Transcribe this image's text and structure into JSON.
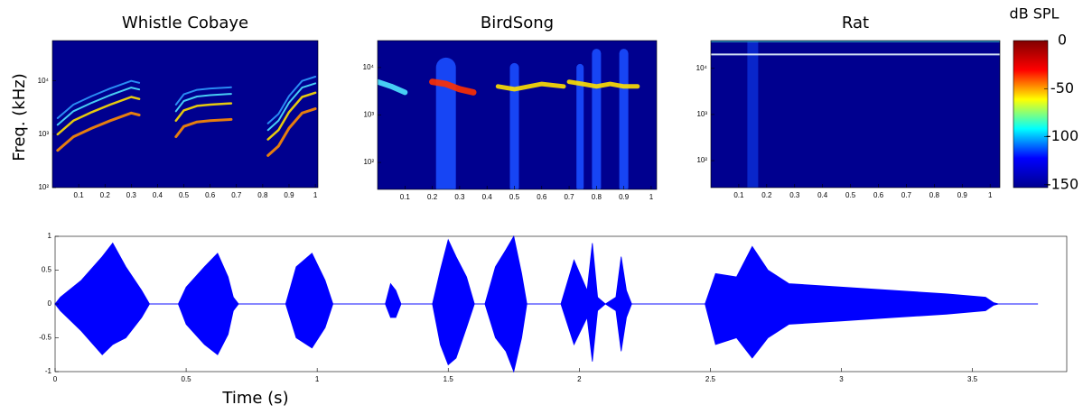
{
  "chart_data": [
    {
      "type": "spectrogram",
      "title": "Whistle Cobaye",
      "ylabel": "Freq. (kHz)",
      "background": "#00008f",
      "xlim": [
        0,
        1.01
      ],
      "xticks": [
        0.1,
        0.2,
        0.3,
        0.4,
        0.5,
        0.6,
        0.7,
        0.8,
        0.9,
        1
      ],
      "ylim": [
        100,
        57000
      ],
      "log_y": true,
      "yticks": [
        {
          "value": 100,
          "label": "10²"
        },
        {
          "value": 1000,
          "label": "10³"
        },
        {
          "value": 10000,
          "label": "10⁴"
        }
      ],
      "series": [
        {
          "color": "#ff8c00",
          "width": 3,
          "x": [
            0.02,
            0.08,
            0.15,
            0.22,
            0.3,
            0.33
          ],
          "values": [
            500,
            900,
            1300,
            1800,
            2500,
            2300
          ]
        },
        {
          "color": "#ffe000",
          "width": 2.5,
          "x": [
            0.02,
            0.08,
            0.15,
            0.22,
            0.3,
            0.33
          ],
          "values": [
            1000,
            1800,
            2600,
            3600,
            5000,
            4600
          ]
        },
        {
          "color": "#4fe3ff",
          "width": 2,
          "x": [
            0.02,
            0.08,
            0.15,
            0.22,
            0.3,
            0.33
          ],
          "values": [
            1500,
            2700,
            3900,
            5400,
            7500,
            6900
          ]
        },
        {
          "color": "#2f9bff",
          "width": 2,
          "x": [
            0.02,
            0.08,
            0.15,
            0.22,
            0.3,
            0.33
          ],
          "values": [
            2000,
            3600,
            5200,
            7200,
            10000,
            9200
          ]
        },
        {
          "color": "#ff8c00",
          "width": 3,
          "x": [
            0.47,
            0.5,
            0.55,
            0.6,
            0.68
          ],
          "values": [
            900,
            1400,
            1700,
            1800,
            1900
          ]
        },
        {
          "color": "#ffe000",
          "width": 2.5,
          "x": [
            0.47,
            0.5,
            0.55,
            0.6,
            0.68
          ],
          "values": [
            1800,
            2800,
            3400,
            3600,
            3800
          ]
        },
        {
          "color": "#4fe3ff",
          "width": 2,
          "x": [
            0.47,
            0.5,
            0.55,
            0.6,
            0.68
          ],
          "values": [
            2700,
            4200,
            5100,
            5400,
            5700
          ]
        },
        {
          "color": "#2f9bff",
          "width": 2,
          "x": [
            0.47,
            0.5,
            0.55,
            0.6,
            0.68
          ],
          "values": [
            3600,
            5600,
            6800,
            7200,
            7600
          ]
        },
        {
          "color": "#ff8c00",
          "width": 3,
          "x": [
            0.82,
            0.86,
            0.9,
            0.95,
            1.0
          ],
          "values": [
            400,
            600,
            1300,
            2500,
            3000
          ]
        },
        {
          "color": "#ffe000",
          "width": 2.5,
          "x": [
            0.82,
            0.86,
            0.9,
            0.95,
            1.0
          ],
          "values": [
            800,
            1200,
            2600,
            5000,
            6000
          ]
        },
        {
          "color": "#4fe3ff",
          "width": 2,
          "x": [
            0.82,
            0.86,
            0.9,
            0.95,
            1.0
          ],
          "values": [
            1200,
            1800,
            3900,
            7500,
            9000
          ]
        },
        {
          "color": "#2f9bff",
          "width": 2,
          "x": [
            0.82,
            0.86,
            0.9,
            0.95,
            1.0
          ],
          "values": [
            1600,
            2400,
            5200,
            10000,
            12000
          ]
        }
      ]
    },
    {
      "type": "spectrogram",
      "title": "BirdSong",
      "background": "#00008f",
      "xlim": [
        0,
        1.02
      ],
      "xticks": [
        0.1,
        0.2,
        0.3,
        0.4,
        0.5,
        0.6,
        0.7,
        0.8,
        0.9,
        1
      ],
      "ylim": [
        27,
        37000
      ],
      "log_y": true,
      "yticks": [
        {
          "value": 100,
          "label": "10²"
        },
        {
          "value": 1000,
          "label": "10³"
        },
        {
          "value": 10000,
          "label": "10⁴"
        }
      ],
      "series": [
        {
          "color": "#1a4dff",
          "width": 22,
          "x": [
            0.25,
            0.25
          ],
          "values": [
            30,
            10000
          ]
        },
        {
          "color": "#1a4dff",
          "width": 10,
          "x": [
            0.5,
            0.5
          ],
          "values": [
            30,
            10000
          ]
        },
        {
          "color": "#1a4dff",
          "width": 8,
          "x": [
            0.74,
            0.74
          ],
          "values": [
            30,
            10000
          ]
        },
        {
          "color": "#1a4dff",
          "width": 10,
          "x": [
            0.8,
            0.8
          ],
          "values": [
            30,
            20000
          ]
        },
        {
          "color": "#1a4dff",
          "width": 10,
          "x": [
            0.9,
            0.9
          ],
          "values": [
            30,
            20000
          ]
        },
        {
          "color": "#4fe3ff",
          "width": 6,
          "x": [
            0.0,
            0.05,
            0.1
          ],
          "values": [
            5000,
            4000,
            3000
          ]
        },
        {
          "color": "#ff3000",
          "width": 7,
          "x": [
            0.2,
            0.25,
            0.3,
            0.35
          ],
          "values": [
            5000,
            4500,
            3500,
            3000
          ]
        },
        {
          "color": "#ffe000",
          "width": 5,
          "x": [
            0.44,
            0.5,
            0.6,
            0.68
          ],
          "values": [
            4000,
            3500,
            4500,
            4000
          ]
        },
        {
          "color": "#ffe000",
          "width": 5,
          "x": [
            0.7,
            0.75,
            0.8,
            0.85,
            0.9,
            0.95
          ],
          "values": [
            5000,
            4500,
            4000,
            4500,
            4000,
            4000
          ]
        }
      ]
    },
    {
      "type": "spectrogram",
      "title": "Rat",
      "background": "#00008f",
      "xlim": [
        0,
        1.035
      ],
      "xticks": [
        0.1,
        0.2,
        0.3,
        0.4,
        0.5,
        0.6,
        0.7,
        0.8,
        0.9,
        1
      ],
      "ylim": [
        26,
        40000
      ],
      "log_y": true,
      "yticks": [
        {
          "value": 100,
          "label": "10²"
        },
        {
          "value": 1000,
          "label": "10³"
        },
        {
          "value": 10000,
          "label": "10⁴"
        }
      ],
      "series": [
        {
          "color": "#0a2ad0",
          "width": 12,
          "x": [
            0.15,
            0.15
          ],
          "values": [
            26,
            40000
          ]
        },
        {
          "color": "#e8f8ff",
          "width": 2,
          "x": [
            0,
            1.035
          ],
          "values": [
            20000,
            20000
          ]
        },
        {
          "color": "#2aa0c0",
          "width": 1.5,
          "x": [
            0,
            1.035
          ],
          "values": [
            38000,
            38000
          ]
        }
      ]
    },
    {
      "type": "colorbar",
      "title": "dB SPL",
      "ylim": [
        -153,
        0
      ],
      "yticks": [
        0,
        -50,
        -100,
        -150
      ],
      "colors": [
        "#00008f",
        "#0000ff",
        "#00ffff",
        "#ffff00",
        "#ff0000",
        "#800000"
      ]
    },
    {
      "type": "waveform",
      "xlabel": "Time (s)",
      "color": "#0000ff",
      "xlim": [
        0,
        3.86
      ],
      "xticks": [
        0,
        0.5,
        1,
        1.5,
        2,
        2.5,
        3,
        3.5
      ],
      "ylim": [
        -1,
        1
      ],
      "yticks": [
        -1,
        -0.5,
        0,
        0.5,
        1
      ],
      "x": [
        0,
        0.02,
        0.1,
        0.18,
        0.22,
        0.27,
        0.33,
        0.36,
        0.47,
        0.5,
        0.57,
        0.62,
        0.66,
        0.68,
        0.7,
        0.88,
        0.92,
        0.98,
        1.03,
        1.06,
        1.26,
        1.28,
        1.3,
        1.32,
        1.44,
        1.47,
        1.5,
        1.53,
        1.57,
        1.6,
        1.64,
        1.68,
        1.72,
        1.75,
        1.78,
        1.8,
        1.93,
        1.98,
        2.03,
        2.05,
        2.07,
        2.1,
        2.14,
        2.16,
        2.18,
        2.2,
        2.48,
        2.52,
        2.6,
        2.66,
        2.72,
        2.8,
        3.0,
        3.2,
        3.4,
        3.55,
        3.58,
        3.6,
        3.75
      ],
      "series": [
        {
          "values": [
            0,
            0.1,
            0.35,
            0.7,
            0.9,
            0.55,
            0.2,
            0,
            0,
            0.25,
            0.55,
            0.75,
            0.4,
            0.1,
            0,
            0,
            0.55,
            0.75,
            0.35,
            0,
            0,
            0.3,
            0.2,
            0,
            0,
            0.5,
            0.95,
            0.7,
            0.4,
            0,
            0,
            0.55,
            0.8,
            1.0,
            0.45,
            0,
            0,
            0.65,
            0.2,
            0.9,
            0.1,
            0,
            0.1,
            0.7,
            0.2,
            0,
            0,
            0.45,
            0.4,
            0.85,
            0.5,
            0.3,
            0.25,
            0.2,
            0.15,
            0.1,
            0.02,
            0,
            0
          ]
        },
        {
          "values": [
            0,
            -0.1,
            -0.4,
            -0.75,
            -0.6,
            -0.5,
            -0.2,
            0,
            0,
            -0.3,
            -0.6,
            -0.75,
            -0.45,
            -0.1,
            0,
            0,
            -0.5,
            -0.65,
            -0.35,
            0,
            0,
            -0.2,
            -0.2,
            0,
            0,
            -0.6,
            -0.9,
            -0.8,
            -0.35,
            0,
            0,
            -0.5,
            -0.7,
            -1.0,
            -0.5,
            0,
            0,
            -0.6,
            -0.2,
            -0.85,
            -0.1,
            0,
            -0.1,
            -0.7,
            -0.2,
            0,
            0,
            -0.6,
            -0.5,
            -0.8,
            -0.5,
            -0.3,
            -0.25,
            -0.2,
            -0.15,
            -0.1,
            -0.02,
            0,
            0
          ]
        }
      ]
    }
  ]
}
